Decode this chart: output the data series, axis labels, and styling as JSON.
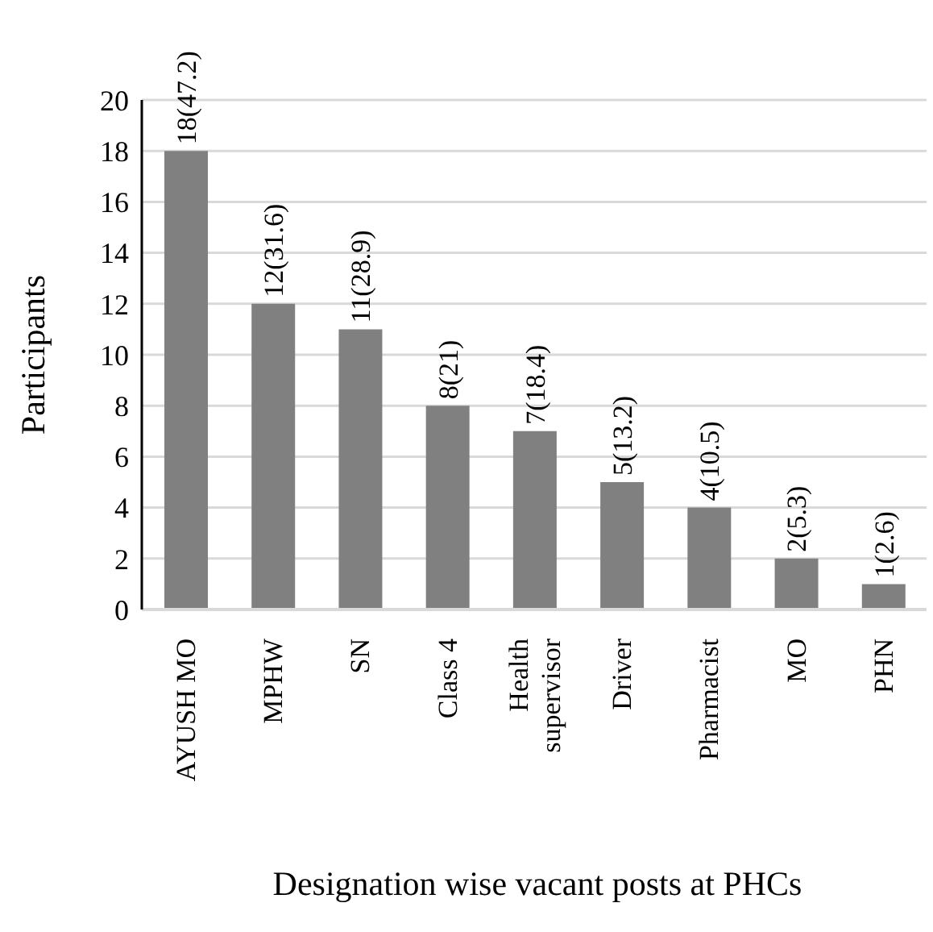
{
  "chart_data": {
    "type": "bar",
    "xlabel": "Designation wise vacant posts at PHCs",
    "ylabel": "Participants",
    "categories": [
      "AYUSH MO",
      "MPHW",
      "SN",
      "Class 4",
      "Health supervisor",
      "Driver",
      "Pharmacist",
      "MO",
      "PHN"
    ],
    "values": [
      18,
      12,
      11,
      8,
      7,
      5,
      4,
      2,
      1
    ],
    "color": "#808080",
    "value_labels": [
      "18(47.2)",
      "12(31.6)",
      "11(28.9)",
      "8(21)",
      "7(18.4)",
      "5(13.2)",
      "4(10.5)",
      "2(5.3)",
      "1(2.6)"
    ],
    "ylim": [
      0,
      20
    ],
    "yticks": [
      0,
      2,
      4,
      6,
      8,
      10,
      12,
      14,
      16,
      18,
      20
    ],
    "grid": "y"
  }
}
